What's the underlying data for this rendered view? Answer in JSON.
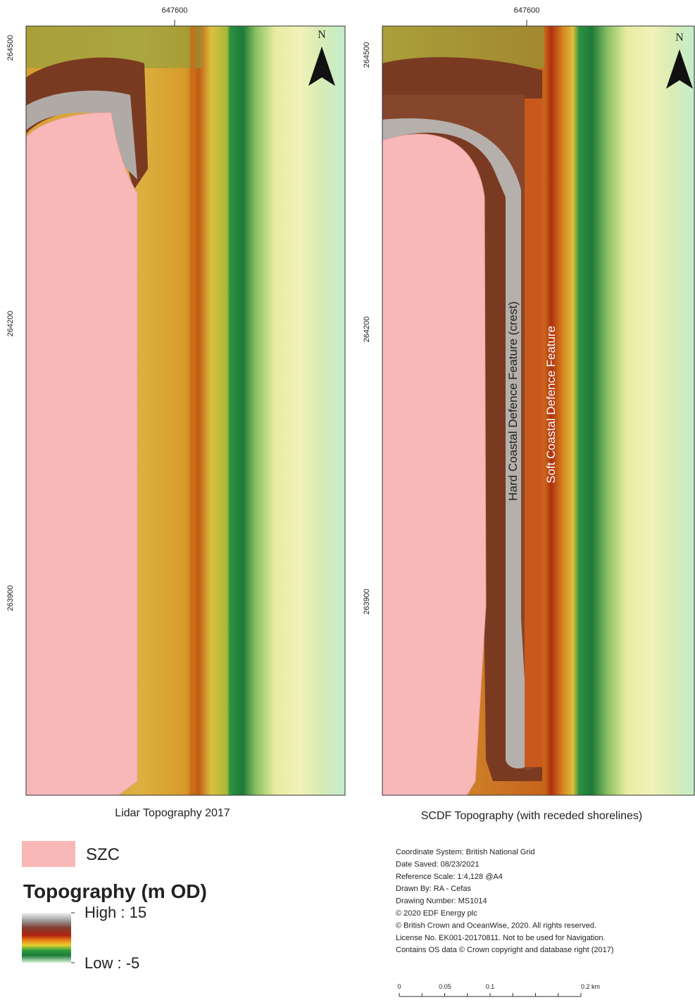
{
  "left_map": {
    "x_tick": "647600",
    "y_ticks": [
      "264500",
      "264200",
      "263900"
    ],
    "north": "N",
    "caption": "Lidar Topography 2017"
  },
  "right_map": {
    "x_tick": "647600",
    "y_ticks": [
      "264500",
      "264200",
      "263900"
    ],
    "north": "N",
    "caption": "SCDF Topography (with receded shorelines)",
    "labels": [
      "Hard Coastal Defence Feature (crest)",
      "Soft Coastal Defence Feature"
    ]
  },
  "legend": {
    "szc": "SZC",
    "title": "Topography (m OD)",
    "high": "High : 15",
    "low": "Low : -5"
  },
  "metadata": [
    "Coordinate System: British National Grid",
    "Date Saved: 08/23/2021",
    "Reference Scale: 1:4,128 @A4",
    "Drawn By: RA - Cefas",
    "Drawing Number: MS1014",
    "© 2020 EDF Energy plc",
    "© British Crown and OceanWise, 2020. All rights reserved.",
    "License No. EK001-20170811. Not to be used for Navigation.",
    "Contains OS data © Crown copyright and database right (2017)"
  ],
  "scale_bar": [
    "0",
    "0.05",
    "0.1",
    "0.2 km"
  ]
}
